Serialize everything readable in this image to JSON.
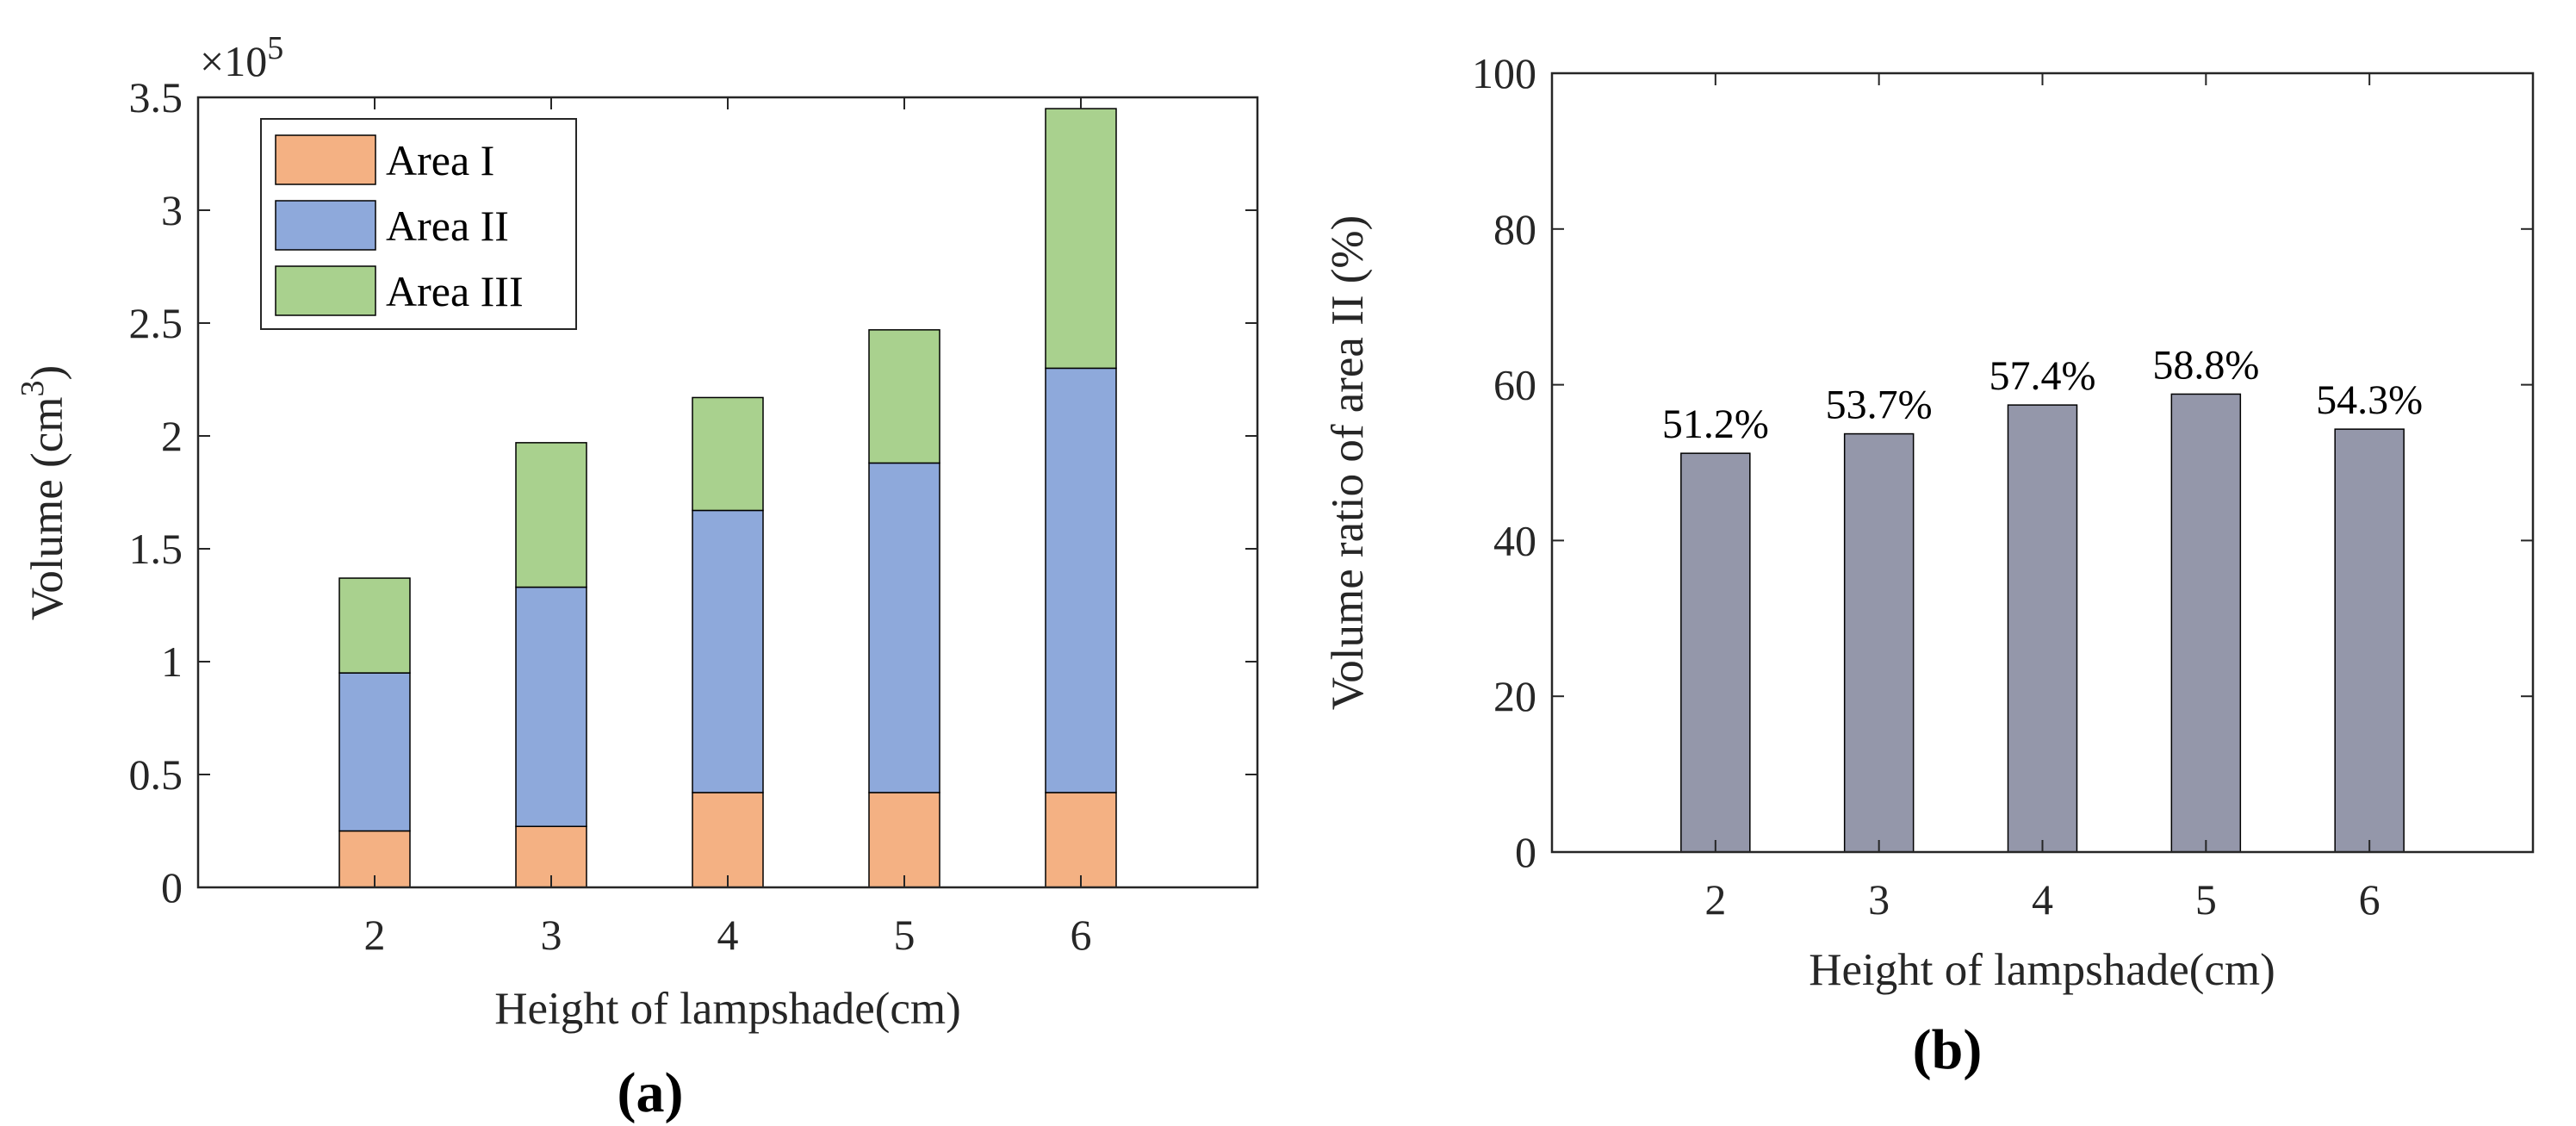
{
  "chart_data": [
    {
      "type": "bar",
      "stacked": true,
      "panel_label": "(a)",
      "categories": [
        "2",
        "3",
        "4",
        "5",
        "6"
      ],
      "series": [
        {
          "name": "Area I",
          "color": "#F4B183",
          "values": [
            25000,
            27000,
            42000,
            42000,
            42000
          ]
        },
        {
          "name": "Area II",
          "color": "#8EA9DB",
          "values": [
            70000,
            106000,
            125000,
            146000,
            188000
          ]
        },
        {
          "name": "Area III",
          "color": "#A9D18E",
          "values": [
            42000,
            64000,
            50000,
            59000,
            115000
          ]
        }
      ],
      "xlabel": "Height of lampshade(cm)",
      "ylabel_prefix": "Volume (cm",
      "ylabel_sup": "3",
      "ylabel_suffix": ")",
      "ylim": [
        0,
        350000
      ],
      "xlim": [
        1,
        7
      ],
      "yticks": [
        0,
        50000,
        100000,
        150000,
        200000,
        250000,
        300000,
        350000
      ],
      "ytick_labels": [
        "0",
        "0.5",
        "1",
        "1.5",
        "2",
        "2.5",
        "3",
        "3.5"
      ],
      "exponent_base": "×10",
      "exponent_power": "5",
      "legend_position": "top-left",
      "grid": false
    },
    {
      "type": "bar",
      "panel_label": "(b)",
      "categories": [
        "2",
        "3",
        "4",
        "5",
        "6"
      ],
      "series": [
        {
          "name": "Volume ratio of area II",
          "color": "#9497AA",
          "values": [
            51.2,
            53.7,
            57.4,
            58.8,
            54.3
          ]
        }
      ],
      "data_labels": [
        "51.2%",
        "53.7%",
        "57.4%",
        "58.8%",
        "54.3%"
      ],
      "xlabel": "Height of lampshade(cm)",
      "ylabel": "Volume ratio of area II (%)",
      "ylim": [
        0,
        100
      ],
      "xlim": [
        1,
        7
      ],
      "yticks": [
        0,
        20,
        40,
        60,
        80,
        100
      ],
      "ytick_labels": [
        "0",
        "20",
        "40",
        "60",
        "80",
        "100"
      ],
      "grid": false
    }
  ]
}
